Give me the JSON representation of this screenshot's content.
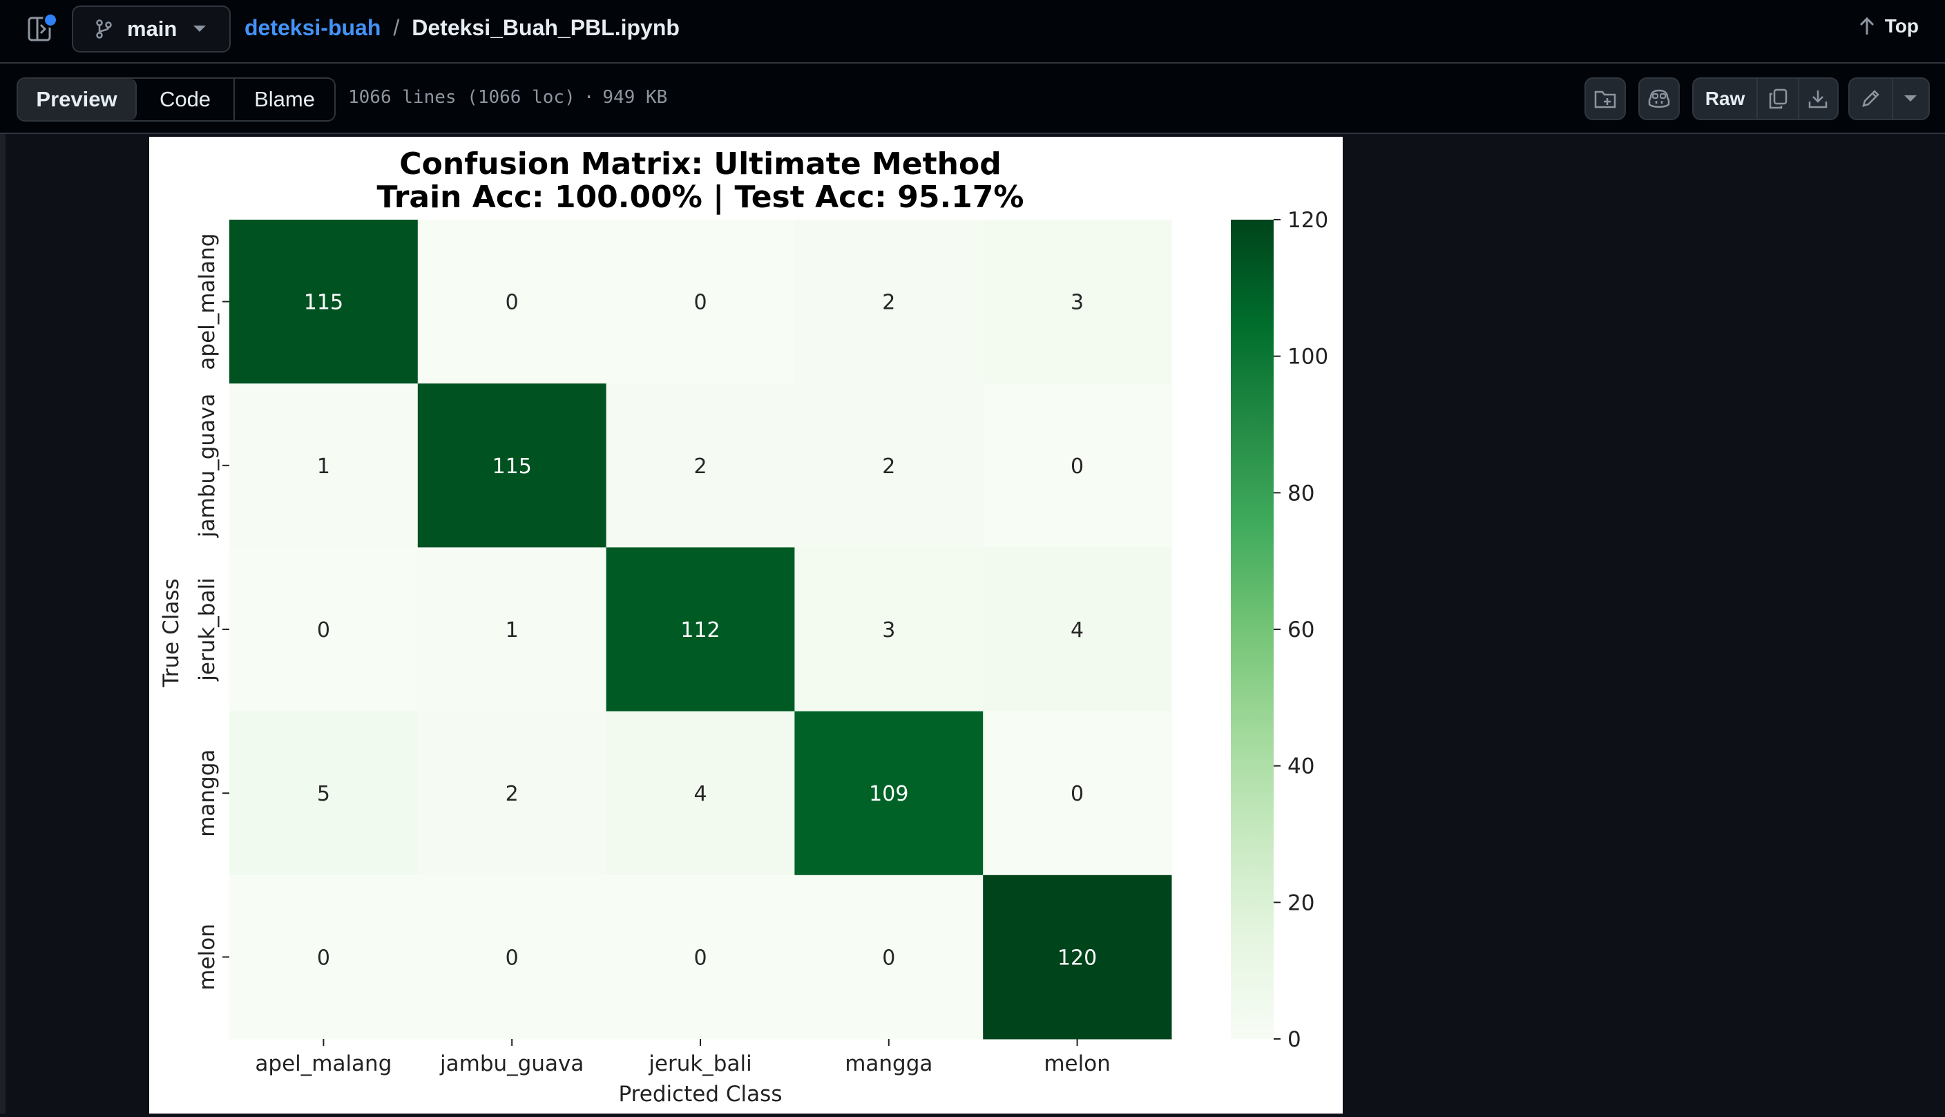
{
  "header": {
    "branch": "main",
    "repo": "deteksi-buah",
    "separator": "/",
    "file": "Deteksi_Buah_PBL.ipynb",
    "top_label": "Top"
  },
  "filebar": {
    "tabs": [
      "Preview",
      "Code",
      "Blame"
    ],
    "active_tab": "Preview",
    "lines": "1066 lines (1066 loc)",
    "dot": "·",
    "size": "949 KB",
    "raw_label": "Raw"
  },
  "icons": [
    "panel-toggle-icon",
    "git-branch-icon",
    "chevron-down-icon",
    "arrow-up-icon",
    "copilot-icon",
    "add-file-icon",
    "copy-icon",
    "download-icon",
    "pencil-icon",
    "triangle-down-icon"
  ],
  "colors": {
    "accent": "#4493f8",
    "heat_dark": "#00441b",
    "heat_light": "#f7fcf5"
  },
  "chart_data": {
    "type": "heatmap",
    "title": "Confusion Matrix: Ultimate Method",
    "subtitle": "Train Acc: 100.00% | Test Acc: 95.17%",
    "xlabel": "Predicted Class",
    "ylabel": "True Class",
    "x_categories": [
      "apel_malang",
      "jambu_guava",
      "jeruk_bali",
      "mangga",
      "melon"
    ],
    "y_categories": [
      "apel_malang",
      "jambu_guava",
      "jeruk_bali",
      "mangga",
      "melon"
    ],
    "values": [
      [
        115,
        0,
        0,
        2,
        3
      ],
      [
        1,
        115,
        2,
        2,
        0
      ],
      [
        0,
        1,
        112,
        3,
        4
      ],
      [
        5,
        2,
        4,
        109,
        0
      ],
      [
        0,
        0,
        0,
        0,
        120
      ]
    ],
    "colorbar": {
      "min": 0,
      "max": 120,
      "ticks": [
        0,
        20,
        40,
        60,
        80,
        100,
        120
      ],
      "colormap": "Greens"
    },
    "grid": false
  }
}
